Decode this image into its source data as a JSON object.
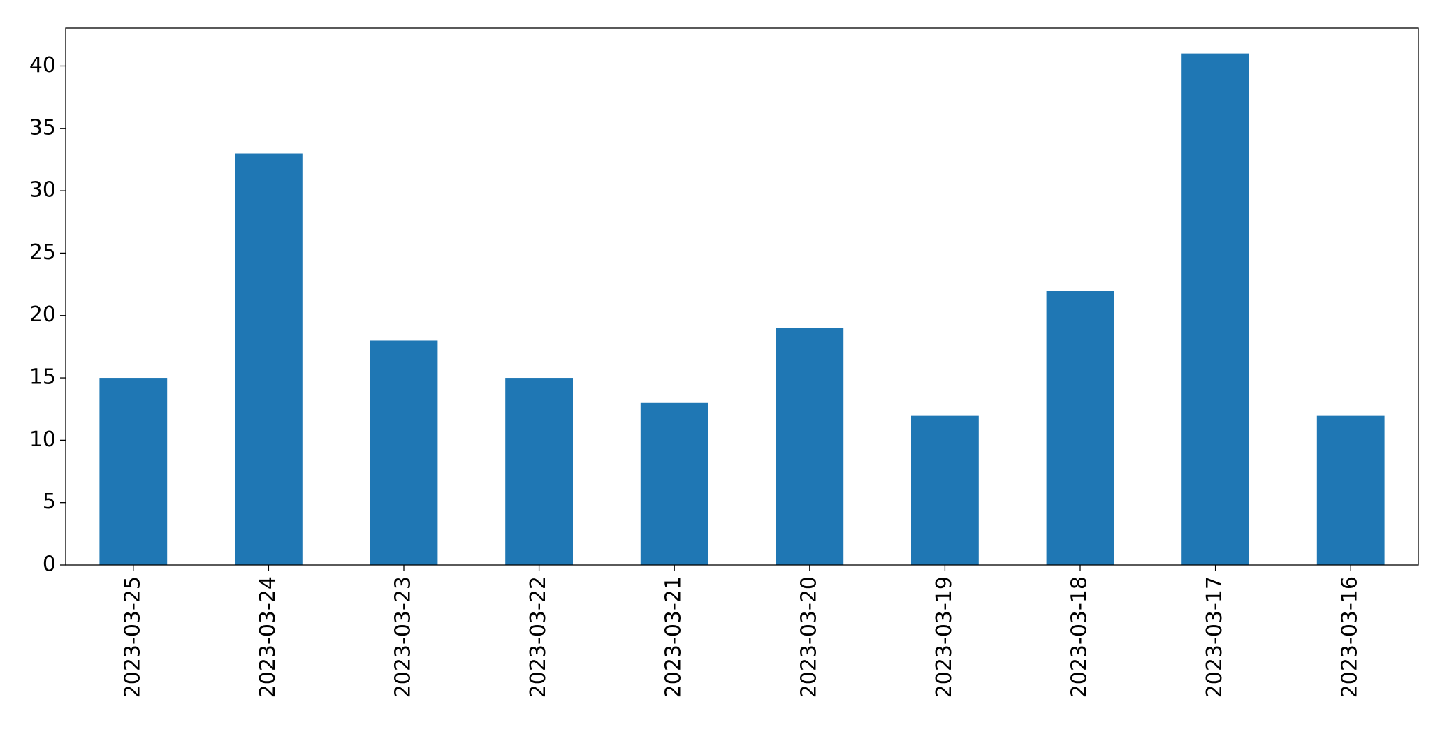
{
  "chart_data": {
    "type": "bar",
    "categories": [
      "2023-03-25",
      "2023-03-24",
      "2023-03-23",
      "2023-03-22",
      "2023-03-21",
      "2023-03-20",
      "2023-03-19",
      "2023-03-18",
      "2023-03-17",
      "2023-03-16"
    ],
    "values": [
      15,
      33,
      18,
      15,
      13,
      19,
      12,
      22,
      41,
      12
    ],
    "color": "#1f77b4",
    "ylim": [
      0,
      43.05
    ],
    "yticks": [
      0,
      5,
      10,
      15,
      20,
      25,
      30,
      35,
      40
    ],
    "grid": false
  }
}
